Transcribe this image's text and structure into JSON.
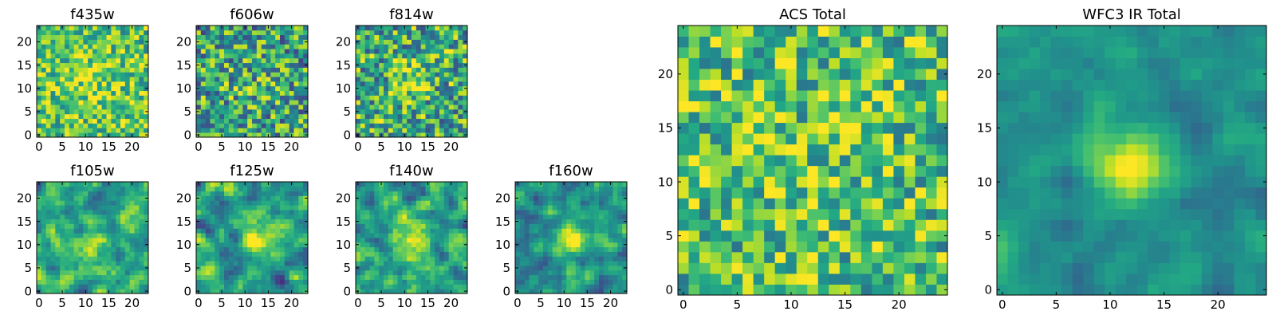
{
  "figure": {
    "panel_count": 9
  },
  "chart_data": [
    {
      "type": "heatmap",
      "title": "f435w",
      "colormap": "viridis",
      "grid_size": [
        24,
        24
      ],
      "xlim": [
        -0.5,
        23.5
      ],
      "ylim": [
        -0.5,
        23.5
      ],
      "xticks": [
        0,
        5,
        10,
        15,
        20
      ],
      "yticks": [
        0,
        5,
        10,
        15,
        20
      ],
      "value_range": [
        0,
        1
      ],
      "mean_value": 0.72,
      "noise": 0.3,
      "peak": {
        "x": 11,
        "y": 11,
        "sigma": 5,
        "amplitude": 0.1
      },
      "smooth": false,
      "seed": 1
    },
    {
      "type": "heatmap",
      "title": "f606w",
      "colormap": "viridis",
      "grid_size": [
        24,
        24
      ],
      "xlim": [
        -0.5,
        23.5
      ],
      "ylim": [
        -0.5,
        23.5
      ],
      "xticks": [
        0,
        5,
        10,
        15,
        20
      ],
      "yticks": [
        0,
        5,
        10,
        15,
        20
      ],
      "value_range": [
        0,
        1
      ],
      "mean_value": 0.58,
      "noise": 0.38,
      "peak": {
        "x": 11,
        "y": 11,
        "sigma": 4,
        "amplitude": 0.05
      },
      "smooth": false,
      "seed": 2
    },
    {
      "type": "heatmap",
      "title": "f814w",
      "colormap": "viridis",
      "grid_size": [
        24,
        24
      ],
      "xlim": [
        -0.5,
        23.5
      ],
      "ylim": [
        -0.5,
        23.5
      ],
      "xticks": [
        0,
        5,
        10,
        15,
        20
      ],
      "yticks": [
        0,
        5,
        10,
        15,
        20
      ],
      "value_range": [
        0,
        1
      ],
      "mean_value": 0.62,
      "noise": 0.38,
      "peak": {
        "x": 11,
        "y": 11,
        "sigma": 2.5,
        "amplitude": 0.25
      },
      "smooth": false,
      "seed": 3
    },
    {
      "type": "heatmap",
      "title": "f105w",
      "colormap": "viridis",
      "grid_size": [
        24,
        24
      ],
      "xlim": [
        -0.5,
        23.5
      ],
      "ylim": [
        -0.5,
        23.5
      ],
      "xticks": [
        0,
        5,
        10,
        15,
        20
      ],
      "yticks": [
        0,
        5,
        10,
        15,
        20
      ],
      "value_range": [
        0,
        1
      ],
      "mean_value": 0.62,
      "noise": 0.35,
      "peak": {
        "x": 12,
        "y": 11,
        "sigma": 2.5,
        "amplitude": 0.3
      },
      "smooth": true,
      "seed": 4
    },
    {
      "type": "heatmap",
      "title": "f125w",
      "colormap": "viridis",
      "grid_size": [
        24,
        24
      ],
      "xlim": [
        -0.5,
        23.5
      ],
      "ylim": [
        -0.5,
        23.5
      ],
      "xticks": [
        0,
        5,
        10,
        15,
        20
      ],
      "yticks": [
        0,
        5,
        10,
        15,
        20
      ],
      "value_range": [
        0,
        1
      ],
      "mean_value": 0.55,
      "noise": 0.35,
      "peak": {
        "x": 12,
        "y": 11,
        "sigma": 2.2,
        "amplitude": 0.45
      },
      "smooth": true,
      "seed": 5
    },
    {
      "type": "heatmap",
      "title": "f140w",
      "colormap": "viridis",
      "grid_size": [
        24,
        24
      ],
      "xlim": [
        -0.5,
        23.5
      ],
      "ylim": [
        -0.5,
        23.5
      ],
      "xticks": [
        0,
        5,
        10,
        15,
        20
      ],
      "yticks": [
        0,
        5,
        10,
        15,
        20
      ],
      "value_range": [
        0,
        1
      ],
      "mean_value": 0.58,
      "noise": 0.35,
      "peak": {
        "x": 11,
        "y": 11,
        "sigma": 2.2,
        "amplitude": 0.4
      },
      "smooth": true,
      "seed": 6
    },
    {
      "type": "heatmap",
      "title": "f160w",
      "colormap": "viridis",
      "grid_size": [
        24,
        24
      ],
      "xlim": [
        -0.5,
        23.5
      ],
      "ylim": [
        -0.5,
        23.5
      ],
      "xticks": [
        0,
        5,
        10,
        15,
        20
      ],
      "yticks": [
        0,
        5,
        10,
        15,
        20
      ],
      "value_range": [
        0,
        1
      ],
      "mean_value": 0.5,
      "noise": 0.3,
      "peak": {
        "x": 12,
        "y": 11,
        "sigma": 2.0,
        "amplitude": 0.5
      },
      "smooth": true,
      "seed": 7
    },
    {
      "type": "heatmap",
      "title": "ACS Total",
      "colormap": "viridis",
      "grid_size": [
        25,
        25
      ],
      "xlim": [
        -0.5,
        24.5
      ],
      "ylim": [
        -0.5,
        24.5
      ],
      "xticks": [
        0,
        5,
        10,
        15,
        20
      ],
      "yticks": [
        0,
        5,
        10,
        15,
        20
      ],
      "value_range": [
        0,
        1
      ],
      "mean_value": 0.7,
      "noise": 0.33,
      "peak": {
        "x": 12,
        "y": 12,
        "sigma": 6,
        "amplitude": 0.05
      },
      "smooth": false,
      "seed": 8
    },
    {
      "type": "heatmap",
      "title": "WFC3 IR Total",
      "colormap": "viridis",
      "grid_size": [
        25,
        25
      ],
      "xlim": [
        -0.5,
        24.5
      ],
      "ylim": [
        -0.5,
        24.5
      ],
      "xticks": [
        0,
        5,
        10,
        15,
        20
      ],
      "yticks": [
        0,
        5,
        10,
        15,
        20
      ],
      "value_range": [
        0,
        1
      ],
      "mean_value": 0.5,
      "noise": 0.14,
      "peak": {
        "x": 12,
        "y": 12,
        "sigma": 2.3,
        "amplitude": 0.5
      },
      "smooth": true,
      "seed": 9
    }
  ]
}
